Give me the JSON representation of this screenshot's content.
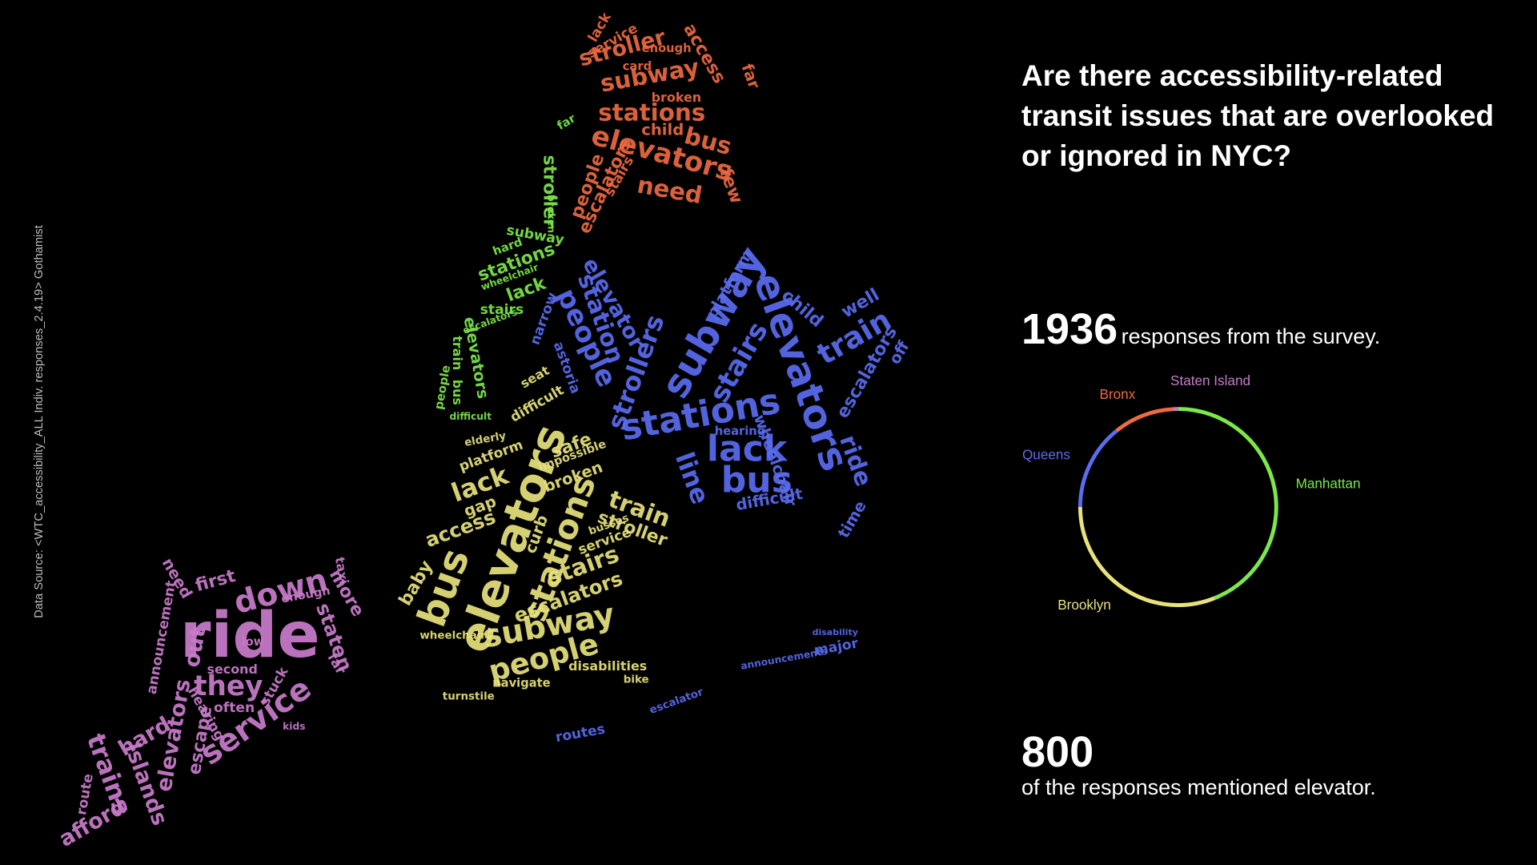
{
  "source": "Data Source: <WTC_accessibility_ALL Indiv. responses_2.4.19> Gothamist",
  "title": "Are there accessibility-related transit issues that are overlooked or ignored in NYC?",
  "stats": [
    {
      "number": "1936",
      "text": "responses from the survey."
    },
    {
      "number": "800",
      "text": "of the responses mentioned elevator."
    }
  ],
  "word_cloud": [
    [
      "stroller",
      "stations",
      "lack",
      "subway",
      "stairs",
      "elevators",
      "train",
      "bus",
      "escalators",
      "difficult",
      "people",
      "hard",
      "far",
      "broken",
      "wheelchair"
    ],
    [
      "elevators",
      "stations",
      "bus",
      "subway",
      "people",
      "lack",
      "escalators",
      "stairs",
      "train",
      "stroller",
      "access",
      "safe",
      "broken",
      "baby",
      "curb",
      "gap",
      "platform",
      "difficult",
      "service",
      "seat",
      "disabilities",
      "navigate",
      "turnstile",
      "wheelchair",
      "bike",
      "impossible",
      "elderly",
      "busses"
    ],
    [
      "elevators",
      "subway",
      "stations",
      "lack",
      "bus",
      "stairs",
      "people",
      "station",
      "strollers",
      "train",
      "line",
      "ride",
      "escalators",
      "child",
      "well",
      "elevator",
      "platform",
      "difficult",
      "wheelchair",
      "hearing",
      "time",
      "off",
      "narrow",
      "astoria",
      "routes",
      "major",
      "announcements",
      "escalator",
      "disability"
    ],
    [
      "stroller",
      "subway",
      "stations",
      "elevators",
      "bus",
      "need",
      "access",
      "child",
      "broken",
      "escalators",
      "people",
      "stairs",
      "far",
      "few",
      "lack",
      "service",
      "card",
      "enough"
    ],
    [
      "ride",
      "down",
      "service",
      "they",
      "staten",
      "more",
      "first",
      "need",
      "out",
      "announcement",
      "elevators",
      "hard",
      "trains",
      "islands",
      "escape",
      "afford",
      "route",
      "far",
      "stuck",
      "low",
      "often",
      "hearing",
      "enough",
      "second",
      "taxi",
      "kids"
    ]
  ],
  "chart_data": {
    "type": "donut",
    "categories": [
      "Manhattan",
      "Brooklyn",
      "Queens",
      "Bronx",
      "Staten Island"
    ],
    "values": [
      852,
      600,
      274,
      194,
      16
    ],
    "colors": [
      "#7de84a",
      "#e8e27c",
      "#5a6cf0",
      "#ee6a42",
      "#c97ccb"
    ]
  }
}
